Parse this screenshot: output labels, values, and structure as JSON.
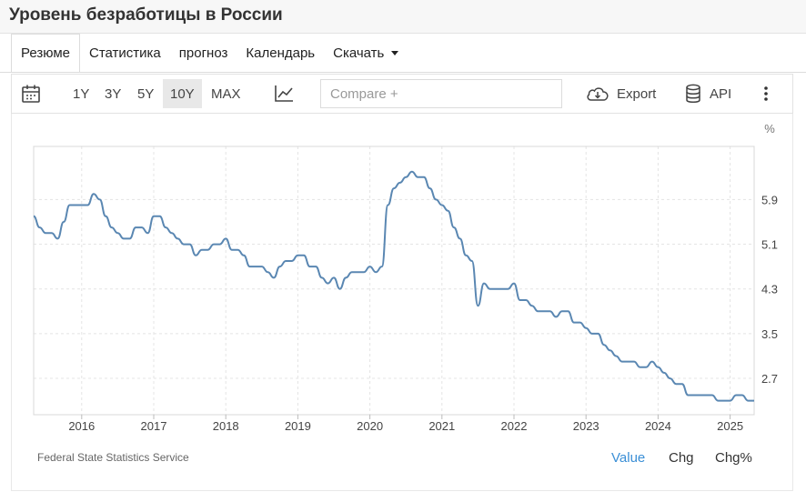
{
  "page": {
    "title": "Уровень безработицы в России"
  },
  "nav": {
    "tabs": [
      {
        "label": "Резюме"
      },
      {
        "label": "Статистика"
      },
      {
        "label": "прогноз"
      },
      {
        "label": "Календарь"
      },
      {
        "label": "Скачать"
      }
    ],
    "active_tab": "Резюме"
  },
  "toolbar": {
    "ranges": [
      "1Y",
      "3Y",
      "5Y",
      "10Y",
      "MAX"
    ],
    "active_range": "10Y",
    "compare_placeholder": "Compare +",
    "export_label": "Export",
    "api_label": "API"
  },
  "footer": {
    "source": "Federal State Statistics Service",
    "modes": [
      "Value",
      "Chg",
      "Chg%"
    ],
    "active_mode": "Value"
  },
  "colors": {
    "line": "#5a87b2",
    "active_mode": "#3b8fd6"
  },
  "chart_data": {
    "type": "line",
    "unit": "%",
    "x_ticks": [
      "2016",
      "2017",
      "2018",
      "2019",
      "2020",
      "2021",
      "2022",
      "2023",
      "2024",
      "2025"
    ],
    "y_ticks": [
      2.7,
      3.5,
      4.3,
      5.1,
      5.9
    ],
    "xlim": [
      "2015-05",
      "2025-05"
    ],
    "ylim": [
      2.05,
      6.85
    ],
    "grid": true,
    "y_axis_side": "right",
    "series": [
      {
        "x": [
          "2015-05",
          "2015-06",
          "2015-07",
          "2015-08",
          "2015-09",
          "2015-10",
          "2015-11",
          "2015-12",
          "2016-01",
          "2016-02",
          "2016-03",
          "2016-04",
          "2016-05",
          "2016-06",
          "2016-07",
          "2016-08",
          "2016-09",
          "2016-10",
          "2016-11",
          "2016-12",
          "2017-01",
          "2017-02",
          "2017-03",
          "2017-04",
          "2017-05",
          "2017-06",
          "2017-07",
          "2017-08",
          "2017-09",
          "2017-10",
          "2017-11",
          "2017-12",
          "2018-01",
          "2018-02",
          "2018-03",
          "2018-04",
          "2018-05",
          "2018-06",
          "2018-07",
          "2018-08",
          "2018-09",
          "2018-10",
          "2018-11",
          "2018-12",
          "2019-01",
          "2019-02",
          "2019-03",
          "2019-04",
          "2019-05",
          "2019-06",
          "2019-07",
          "2019-08",
          "2019-09",
          "2019-10",
          "2019-11",
          "2019-12",
          "2020-01",
          "2020-02",
          "2020-03",
          "2020-04",
          "2020-05",
          "2020-06",
          "2020-07",
          "2020-08",
          "2020-09",
          "2020-10",
          "2020-11",
          "2020-12",
          "2021-01",
          "2021-02",
          "2021-03",
          "2021-04",
          "2021-05",
          "2021-06",
          "2021-07",
          "2021-08",
          "2021-09",
          "2021-10",
          "2021-11",
          "2021-12",
          "2022-01",
          "2022-02",
          "2022-03",
          "2022-04",
          "2022-05",
          "2022-06",
          "2022-07",
          "2022-08",
          "2022-09",
          "2022-10",
          "2022-11",
          "2022-12",
          "2023-01",
          "2023-02",
          "2023-03",
          "2023-04",
          "2023-05",
          "2023-06",
          "2023-07",
          "2023-08",
          "2023-09",
          "2023-10",
          "2023-11",
          "2023-12",
          "2024-01",
          "2024-02",
          "2024-03",
          "2024-04",
          "2024-05",
          "2024-06",
          "2024-07",
          "2024-08",
          "2024-09",
          "2024-10",
          "2024-11",
          "2024-12",
          "2025-01",
          "2025-02",
          "2025-03",
          "2025-04",
          "2025-05"
        ],
        "values": [
          5.6,
          5.4,
          5.3,
          5.3,
          5.2,
          5.5,
          5.8,
          5.8,
          5.8,
          5.8,
          6.0,
          5.9,
          5.6,
          5.4,
          5.3,
          5.2,
          5.2,
          5.4,
          5.4,
          5.3,
          5.6,
          5.6,
          5.4,
          5.3,
          5.2,
          5.1,
          5.1,
          4.9,
          5.0,
          5.0,
          5.1,
          5.1,
          5.2,
          5.0,
          5.0,
          4.9,
          4.7,
          4.7,
          4.7,
          4.6,
          4.5,
          4.7,
          4.8,
          4.8,
          4.9,
          4.9,
          4.7,
          4.7,
          4.5,
          4.4,
          4.5,
          4.3,
          4.5,
          4.6,
          4.6,
          4.6,
          4.7,
          4.6,
          4.7,
          5.8,
          6.1,
          6.2,
          6.3,
          6.4,
          6.3,
          6.3,
          6.1,
          5.9,
          5.8,
          5.7,
          5.4,
          5.2,
          4.9,
          4.8,
          4.0,
          4.4,
          4.3,
          4.3,
          4.3,
          4.3,
          4.4,
          4.1,
          4.1,
          4.0,
          3.9,
          3.9,
          3.9,
          3.8,
          3.9,
          3.9,
          3.7,
          3.7,
          3.6,
          3.5,
          3.5,
          3.3,
          3.2,
          3.1,
          3.0,
          3.0,
          3.0,
          2.9,
          2.9,
          3.0,
          2.9,
          2.8,
          2.7,
          2.6,
          2.6,
          2.4,
          2.4,
          2.4,
          2.4,
          2.4,
          2.3,
          2.3,
          2.3,
          2.4,
          2.4,
          2.3,
          2.3
        ]
      }
    ]
  }
}
